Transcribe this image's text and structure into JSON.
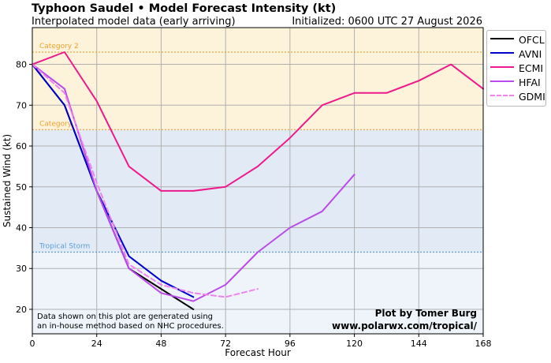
{
  "header": {
    "title": "Typhoon Saudel • Model Forecast Intensity (kt)",
    "subtitle": "Interpolated model data (early arriving)",
    "initialized": "Initialized: 0600 UTC 27 August 2026"
  },
  "chart_data": {
    "type": "line",
    "xlabel": "Forecast Hour",
    "ylabel": "Sustained Wind (kt)",
    "xlim": [
      0,
      168
    ],
    "ylim": [
      14,
      89
    ],
    "x_ticks": [
      0,
      24,
      48,
      72,
      96,
      120,
      144,
      168
    ],
    "y_ticks": [
      20,
      30,
      40,
      50,
      60,
      70,
      80
    ],
    "grid": true,
    "legend_position": "top-right, outside plot",
    "bands": [
      {
        "from": 14,
        "to": 34,
        "color": "#eef4fa"
      },
      {
        "from": 34,
        "to": 64,
        "color": "#e2ebf5"
      },
      {
        "from": 64,
        "to": 89,
        "color": "#fcf3da"
      }
    ],
    "threshold_lines": [
      {
        "y": 34,
        "label": "Tropical Storm",
        "color": "#5b9bd5"
      },
      {
        "y": 64,
        "label": "Category 1",
        "label_visible": "Category",
        "color": "#f0a030"
      },
      {
        "y": 83,
        "label": "Category 2",
        "color": "#f0a030"
      }
    ],
    "series": [
      {
        "name": "OFCL",
        "color": "#000000",
        "dashed": false,
        "x": [
          0,
          12,
          24,
          36,
          48,
          60
        ],
        "y": [
          80,
          70,
          49,
          30,
          25,
          20
        ]
      },
      {
        "name": "AVNI",
        "color": "#0000cd",
        "dashed": false,
        "x": [
          0,
          12,
          24,
          36,
          48,
          60
        ],
        "y": [
          80,
          70,
          49,
          33,
          27,
          23
        ]
      },
      {
        "name": "ECMI",
        "color": "#ee1a8c",
        "dashed": false,
        "x": [
          0,
          12,
          24,
          36,
          48,
          60,
          72,
          84,
          96,
          108,
          120,
          132,
          144,
          156,
          168
        ],
        "y": [
          80,
          83,
          71,
          55,
          49,
          49,
          50,
          55,
          62,
          70,
          73,
          73,
          76,
          80,
          74
        ]
      },
      {
        "name": "HFAI",
        "color": "#bb4aec",
        "dashed": false,
        "x": [
          0,
          12,
          24,
          36,
          48,
          60,
          72,
          84,
          96,
          108,
          120
        ],
        "y": [
          80,
          74,
          49,
          30,
          24,
          22,
          26,
          34,
          40,
          44,
          53
        ]
      },
      {
        "name": "GDMI",
        "color": "#ee82ee",
        "dashed": true,
        "x": [
          0,
          12,
          24,
          36,
          48,
          60,
          72,
          84
        ],
        "y": [
          80,
          73,
          51,
          31,
          26,
          24,
          23,
          25
        ]
      }
    ],
    "annotations": {
      "note_lines": [
        "Data shown on this plot are generated using",
        "an in-house method based on NHC procedures."
      ],
      "credit_lines": [
        "Plot by Tomer Burg",
        "www.polarwx.com/tropical/"
      ]
    }
  }
}
